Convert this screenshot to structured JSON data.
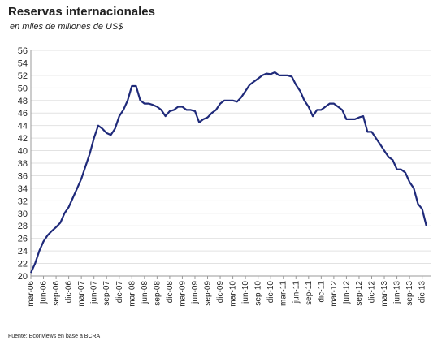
{
  "chart_data": {
    "type": "line",
    "title": "Reservas internacionales",
    "subtitle": "en miles de millones de US$",
    "source": "Fuente: Econviews en base a BCRA",
    "x": [
      "2006-03",
      "2006-04",
      "2006-05",
      "2006-06",
      "2006-07",
      "2006-08",
      "2006-09",
      "2006-10",
      "2006-11",
      "2006-12",
      "2007-01",
      "2007-02",
      "2007-03",
      "2007-04",
      "2007-05",
      "2007-06",
      "2007-07",
      "2007-08",
      "2007-09",
      "2007-10",
      "2007-11",
      "2007-12",
      "2008-01",
      "2008-02",
      "2008-03",
      "2008-04",
      "2008-05",
      "2008-06",
      "2008-07",
      "2008-08",
      "2008-09",
      "2008-10",
      "2008-11",
      "2008-12",
      "2009-01",
      "2009-02",
      "2009-03",
      "2009-04",
      "2009-05",
      "2009-06",
      "2009-07",
      "2009-08",
      "2009-09",
      "2009-10",
      "2009-11",
      "2009-12",
      "2010-01",
      "2010-02",
      "2010-03",
      "2010-04",
      "2010-05",
      "2010-06",
      "2010-07",
      "2010-08",
      "2010-09",
      "2010-10",
      "2010-11",
      "2010-12",
      "2011-01",
      "2011-02",
      "2011-03",
      "2011-04",
      "2011-05",
      "2011-06",
      "2011-07",
      "2011-08",
      "2011-09",
      "2011-10",
      "2011-11",
      "2011-12",
      "2012-01",
      "2012-02",
      "2012-03",
      "2012-04",
      "2012-05",
      "2012-06",
      "2012-07",
      "2012-08",
      "2012-09",
      "2012-10",
      "2012-11",
      "2012-12",
      "2013-01",
      "2013-02",
      "2013-03",
      "2013-04",
      "2013-05",
      "2013-06",
      "2013-07",
      "2013-08",
      "2013-09",
      "2013-10",
      "2013-11",
      "2013-12",
      "2014-01"
    ],
    "series": [
      {
        "name": "Reservas",
        "color": "#1f2a7a",
        "values": [
          20.5,
          22,
          24,
          25.5,
          26.5,
          27.2,
          27.8,
          28.5,
          30,
          31,
          32.5,
          34,
          35.5,
          37.5,
          39.5,
          42,
          44,
          43.5,
          42.8,
          42.5,
          43.5,
          45.5,
          46.5,
          48,
          50.3,
          50.3,
          48,
          47.5,
          47.5,
          47.3,
          47,
          46.5,
          45.5,
          46.3,
          46.5,
          47,
          47,
          46.5,
          46.5,
          46.3,
          44.5,
          45,
          45.3,
          46,
          46.5,
          47.5,
          48,
          48,
          48,
          47.8,
          48.5,
          49.5,
          50.5,
          51,
          51.5,
          52,
          52.3,
          52.2,
          52.5,
          52,
          52,
          52,
          51.8,
          50.5,
          49.5,
          48,
          47,
          45.5,
          46.5,
          46.5,
          47,
          47.5,
          47.5,
          47,
          46.5,
          45,
          45,
          45,
          45.3,
          45.5,
          43,
          43,
          42,
          41,
          40,
          39,
          38.5,
          37,
          37,
          36.5,
          35,
          34,
          31.5,
          30.7,
          28
        ]
      }
    ],
    "xlim": [
      "2006-03",
      "2014-02"
    ],
    "xticks": [
      {
        "value": "2006-03",
        "label": "mar-06"
      },
      {
        "value": "2006-06",
        "label": "jun-06"
      },
      {
        "value": "2006-09",
        "label": "sep-06"
      },
      {
        "value": "2006-12",
        "label": "dic-06"
      },
      {
        "value": "2007-03",
        "label": "mar-07"
      },
      {
        "value": "2007-06",
        "label": "jun-07"
      },
      {
        "value": "2007-09",
        "label": "sep-07"
      },
      {
        "value": "2007-12",
        "label": "dic-07"
      },
      {
        "value": "2008-03",
        "label": "mar-08"
      },
      {
        "value": "2008-06",
        "label": "jun-08"
      },
      {
        "value": "2008-09",
        "label": "sep-08"
      },
      {
        "value": "2008-12",
        "label": "dic-08"
      },
      {
        "value": "2009-03",
        "label": "mar-09"
      },
      {
        "value": "2009-06",
        "label": "jun-09"
      },
      {
        "value": "2009-09",
        "label": "sep-09"
      },
      {
        "value": "2009-12",
        "label": "dic-09"
      },
      {
        "value": "2010-03",
        "label": "mar-10"
      },
      {
        "value": "2010-06",
        "label": "jun-10"
      },
      {
        "value": "2010-09",
        "label": "sep-10"
      },
      {
        "value": "2010-12",
        "label": "dic-10"
      },
      {
        "value": "2011-03",
        "label": "mar-11"
      },
      {
        "value": "2011-06",
        "label": "jun-11"
      },
      {
        "value": "2011-09",
        "label": "sep-11"
      },
      {
        "value": "2011-12",
        "label": "dic-11"
      },
      {
        "value": "2012-03",
        "label": "mar-12"
      },
      {
        "value": "2012-06",
        "label": "jun-12"
      },
      {
        "value": "2012-09",
        "label": "sep-12"
      },
      {
        "value": "2012-12",
        "label": "dic-12"
      },
      {
        "value": "2013-03",
        "label": "mar-13"
      },
      {
        "value": "2013-06",
        "label": "jun-13"
      },
      {
        "value": "2013-09",
        "label": "sep-13"
      },
      {
        "value": "2013-12",
        "label": "dic-13"
      }
    ],
    "ylim": [
      20,
      56
    ],
    "yticks": [
      20,
      22,
      24,
      26,
      28,
      30,
      32,
      34,
      36,
      38,
      40,
      42,
      44,
      46,
      48,
      50,
      52,
      54,
      56
    ],
    "grid": true
  }
}
